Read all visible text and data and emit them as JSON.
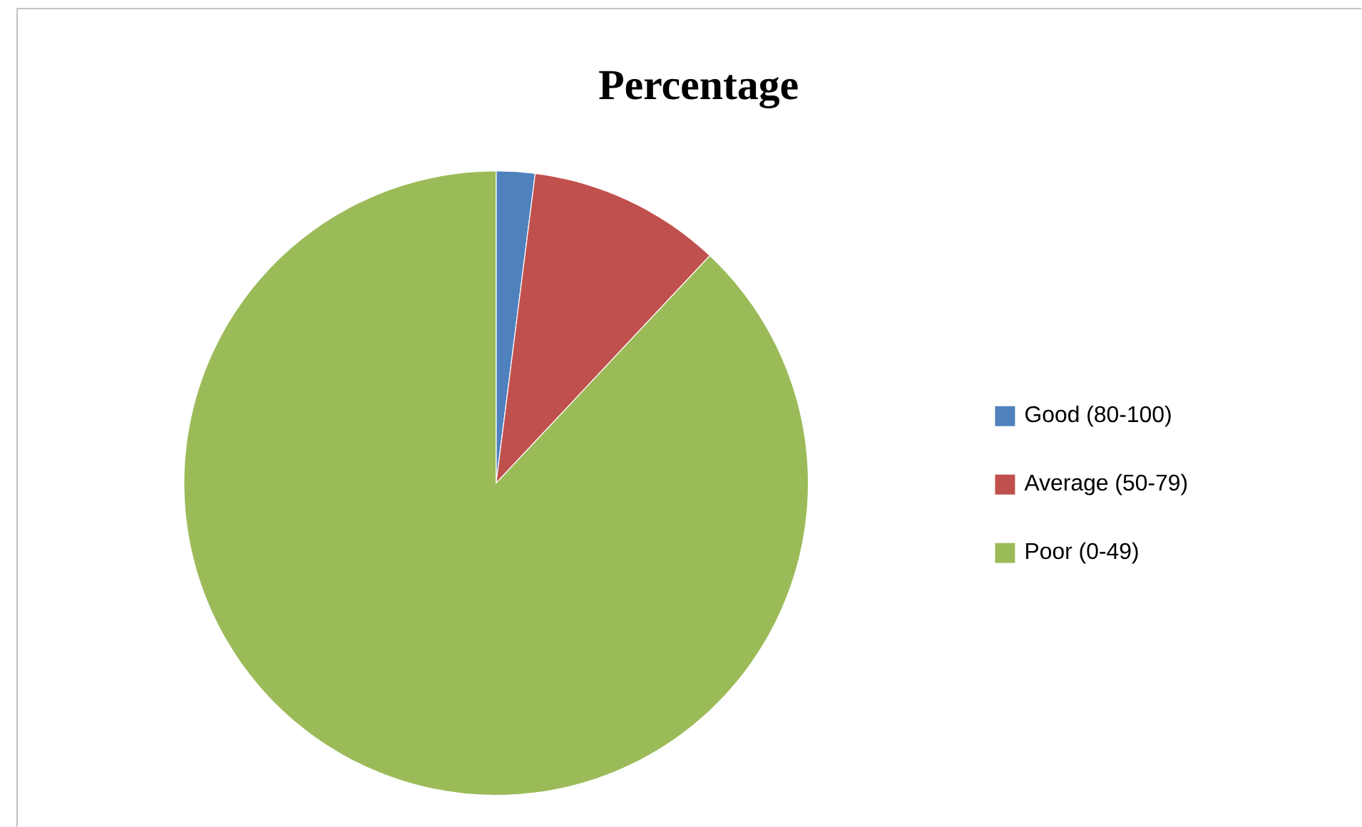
{
  "chart_data": {
    "type": "pie",
    "title": "Percentage",
    "categories": [
      "Good (80-100)",
      "Average (50-79)",
      "Poor (0-49)"
    ],
    "values": [
      2,
      10,
      88
    ],
    "colors": [
      "#4f81bd",
      "#c0504d",
      "#9bbb59"
    ],
    "legend": "right"
  }
}
